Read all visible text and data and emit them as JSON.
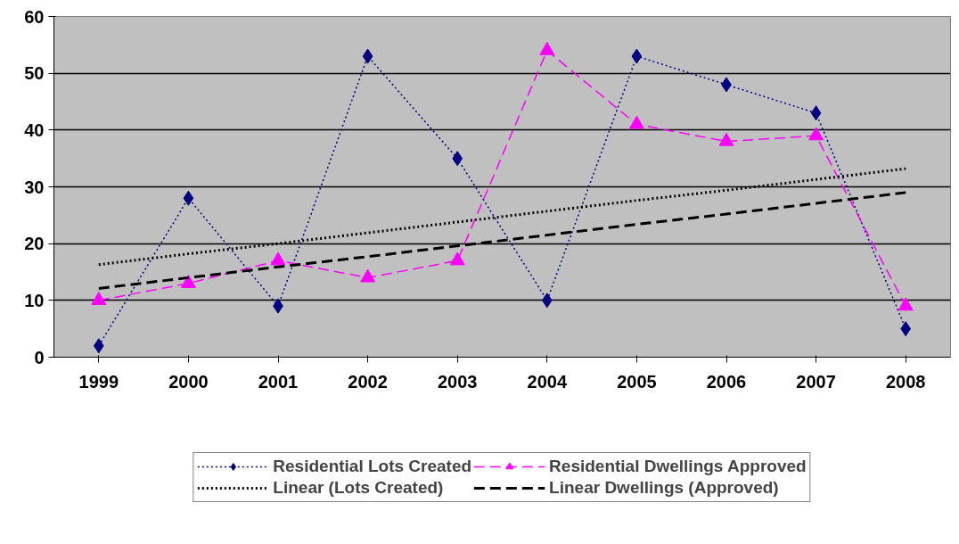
{
  "chart_data": {
    "type": "line",
    "categories": [
      "1999",
      "2000",
      "2001",
      "2002",
      "2003",
      "2004",
      "2005",
      "2006",
      "2007",
      "2008"
    ],
    "ylim": [
      0,
      60
    ],
    "yticks": [
      0,
      10,
      20,
      30,
      40,
      50,
      60
    ],
    "grid": "y",
    "legend": "bottom",
    "series": [
      {
        "name": "Residential Lots Created",
        "color": "#000080",
        "marker": "diamond",
        "line_style": "dotted",
        "values": [
          2,
          28,
          9,
          53,
          35,
          10,
          53,
          48,
          43,
          5
        ]
      },
      {
        "name": "Residential Dwellings Approved",
        "color": "#ff00ff",
        "marker": "triangle",
        "line_style": "dashed",
        "values": [
          10,
          13,
          17,
          14,
          17,
          54,
          41,
          38,
          39,
          9
        ]
      },
      {
        "name": "Linear (Lots Created)",
        "color": "#000000",
        "marker": "none",
        "line_style": "dotted",
        "values": [
          16.3,
          18.2,
          20.0,
          21.9,
          23.8,
          25.7,
          27.6,
          29.4,
          31.3,
          33.2
        ]
      },
      {
        "name": "Linear Dwellings (Approved)",
        "color": "#000000",
        "marker": "none",
        "line_style": "dashed",
        "values": [
          12.1,
          14.0,
          15.9,
          17.7,
          19.6,
          21.5,
          23.4,
          25.2,
          27.1,
          29.0
        ]
      }
    ]
  }
}
